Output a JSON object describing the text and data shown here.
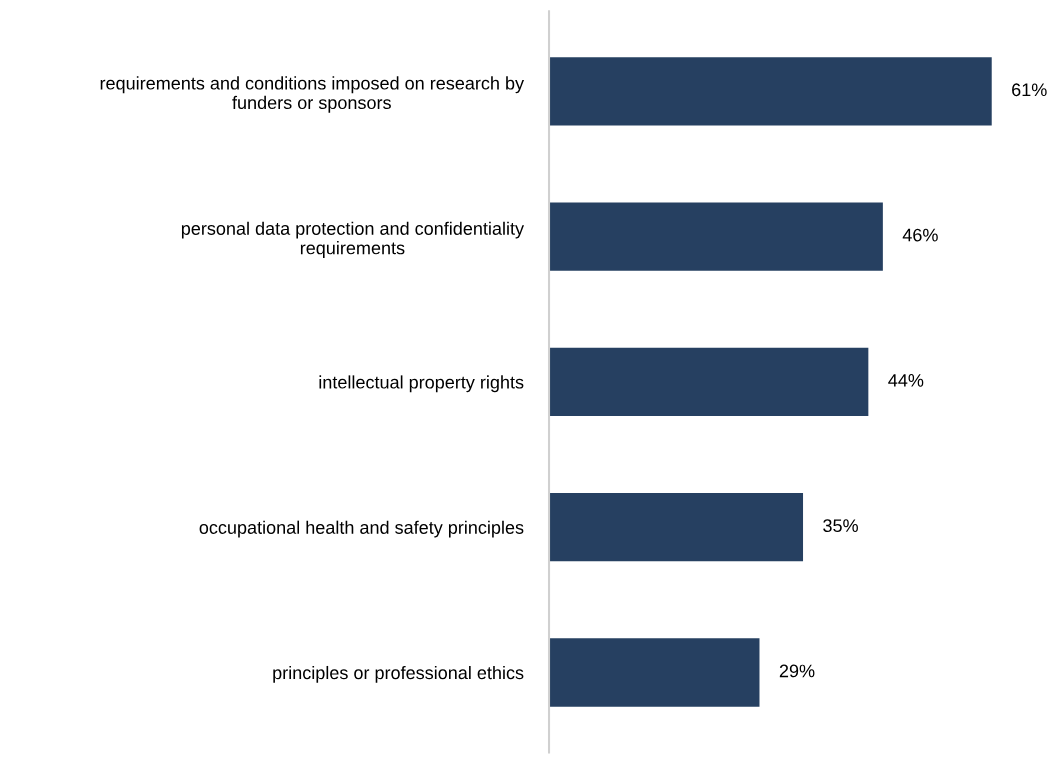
{
  "chart_data": {
    "type": "bar",
    "orientation": "horizontal",
    "categories": [
      "requirements and conditions imposed on research by\nfunders or sponsors",
      "personal data protection and confidentiality\nrequirements",
      "intellectual property rights",
      "occupational health and safety principles",
      "principles or professional ethics"
    ],
    "values": [
      61,
      46,
      44,
      35,
      29
    ],
    "value_labels": [
      "61%",
      "46%",
      "44%",
      "35%",
      "29%"
    ],
    "color": "#264061",
    "tick_labels": "y",
    "grid": false,
    "legend": false
  }
}
